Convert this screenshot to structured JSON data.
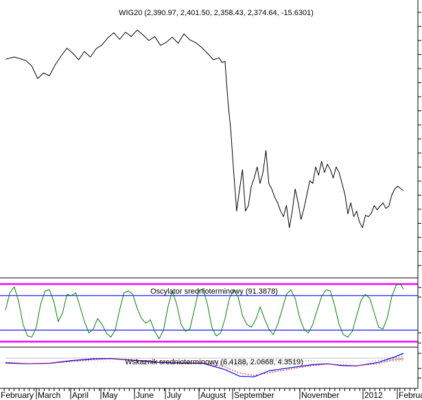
{
  "chart_data": [
    {
      "type": "line",
      "title": "WIG20 (2,390.97, 2,401.50, 2,358.43, 2,374.64, -15.6301)",
      "xlabel": "",
      "ylabel": "",
      "x_tick_labels": [
        "February",
        "March",
        "April",
        "May",
        "June",
        "July",
        "August",
        "September",
        "November",
        "2012",
        "February"
      ],
      "series": [
        {
          "color": "#000000",
          "values": [
            [
              0,
              2850
            ],
            [
              6,
              2858
            ],
            [
              10,
              2852
            ],
            [
              14,
              2845
            ],
            [
              18,
              2825
            ],
            [
              22,
              2780
            ],
            [
              26,
              2800
            ],
            [
              30,
              2790
            ],
            [
              34,
              2830
            ],
            [
              38,
              2862
            ],
            [
              42,
              2890
            ],
            [
              46,
              2872
            ],
            [
              50,
              2848
            ],
            [
              54,
              2878
            ],
            [
              58,
              2858
            ],
            [
              62,
              2888
            ],
            [
              66,
              2902
            ],
            [
              70,
              2928
            ],
            [
              74,
              2946
            ],
            [
              78,
              2922
            ],
            [
              82,
              2948
            ],
            [
              86,
              2932
            ],
            [
              90,
              2956
            ],
            [
              94,
              2938
            ],
            [
              98,
              2918
            ],
            [
              102,
              2932
            ],
            [
              106,
              2900
            ],
            [
              110,
              2912
            ],
            [
              114,
              2930
            ],
            [
              118,
              2908
            ],
            [
              122,
              2942
            ],
            [
              126,
              2920
            ],
            [
              130,
              2910
            ],
            [
              134,
              2893
            ],
            [
              138,
              2872
            ],
            [
              142,
              2848
            ],
            [
              146,
              2855
            ],
            [
              148,
              2838
            ],
            [
              150,
              2842
            ],
            [
              152,
              2700
            ],
            [
              154,
              2590
            ],
            [
              156,
              2440
            ],
            [
              158,
              2300
            ],
            [
              160,
              2380
            ],
            [
              162,
              2450
            ],
            [
              164,
              2300
            ],
            [
              166,
              2320
            ],
            [
              168,
              2390
            ],
            [
              170,
              2420
            ],
            [
              172,
              2460
            ],
            [
              174,
              2400
            ],
            [
              176,
              2440
            ],
            [
              178,
              2520
            ],
            [
              180,
              2400
            ],
            [
              182,
              2380
            ],
            [
              184,
              2350
            ],
            [
              186,
              2330
            ],
            [
              188,
              2300
            ],
            [
              190,
              2280
            ],
            [
              192,
              2320
            ],
            [
              194,
              2240
            ],
            [
              196,
              2300
            ],
            [
              198,
              2380
            ],
            [
              200,
              2330
            ],
            [
              202,
              2270
            ],
            [
              204,
              2310
            ],
            [
              206,
              2360
            ],
            [
              208,
              2410
            ],
            [
              210,
              2400
            ],
            [
              212,
              2460
            ],
            [
              214,
              2430
            ],
            [
              216,
              2480
            ],
            [
              218,
              2440
            ],
            [
              220,
              2470
            ],
            [
              222,
              2450
            ],
            [
              224,
              2420
            ],
            [
              226,
              2460
            ],
            [
              228,
              2440
            ],
            [
              230,
              2400
            ],
            [
              232,
              2360
            ],
            [
              234,
              2290
            ],
            [
              236,
              2330
            ],
            [
              238,
              2280
            ],
            [
              240,
              2300
            ],
            [
              242,
              2260
            ],
            [
              244,
              2240
            ],
            [
              246,
              2285
            ],
            [
              248,
              2280
            ],
            [
              250,
              2292
            ],
            [
              252,
              2320
            ],
            [
              254,
              2305
            ],
            [
              256,
              2318
            ],
            [
              258,
              2330
            ],
            [
              260,
              2310
            ],
            [
              262,
              2318
            ],
            [
              264,
              2358
            ],
            [
              266,
              2380
            ],
            [
              268,
              2390
            ],
            [
              272,
              2374
            ]
          ]
        }
      ]
    },
    {
      "type": "line",
      "title": "Oscylator srednioterminowy (91.3878)",
      "xlabel": "",
      "ylabel": "",
      "reference_lines": [
        100,
        80,
        20,
        0
      ],
      "reference_colors": [
        "#ff00ff",
        "#0000ff",
        "#0000ff",
        "#ff00ff"
      ],
      "ylim": [
        -6,
        106
      ],
      "series": [
        {
          "color": "#008000",
          "values": [
            [
              0,
              55
            ],
            [
              3,
              85
            ],
            [
              6,
              95
            ],
            [
              9,
              70
            ],
            [
              12,
              30
            ],
            [
              15,
              10
            ],
            [
              18,
              8
            ],
            [
              21,
              25
            ],
            [
              24,
              65
            ],
            [
              27,
              88
            ],
            [
              30,
              90
            ],
            [
              33,
              70
            ],
            [
              36,
              35
            ],
            [
              39,
              50
            ],
            [
              42,
              82
            ],
            [
              45,
              80
            ],
            [
              48,
              85
            ],
            [
              51,
              60
            ],
            [
              54,
              35
            ],
            [
              57,
              15
            ],
            [
              60,
              22
            ],
            [
              63,
              40
            ],
            [
              66,
              30
            ],
            [
              69,
              15
            ],
            [
              72,
              8
            ],
            [
              75,
              20
            ],
            [
              78,
              55
            ],
            [
              81,
              85
            ],
            [
              84,
              88
            ],
            [
              87,
              82
            ],
            [
              90,
              58
            ],
            [
              93,
              40
            ],
            [
              96,
              32
            ],
            [
              99,
              38
            ],
            [
              102,
              18
            ],
            [
              105,
              5
            ],
            [
              108,
              20
            ],
            [
              111,
              60
            ],
            [
              114,
              88
            ],
            [
              117,
              65
            ],
            [
              120,
              30
            ],
            [
              123,
              18
            ],
            [
              126,
              22
            ],
            [
              129,
              55
            ],
            [
              132,
              88
            ],
            [
              135,
              92
            ],
            [
              138,
              65
            ],
            [
              141,
              25
            ],
            [
              144,
              10
            ],
            [
              147,
              15
            ],
            [
              150,
              40
            ],
            [
              153,
              75
            ],
            [
              156,
              90
            ],
            [
              159,
              78
            ],
            [
              162,
              45
            ],
            [
              165,
              30
            ],
            [
              168,
              25
            ],
            [
              171,
              38
            ],
            [
              174,
              60
            ],
            [
              177,
              40
            ],
            [
              180,
              22
            ],
            [
              183,
              12
            ],
            [
              186,
              30
            ],
            [
              189,
              55
            ],
            [
              192,
              82
            ],
            [
              195,
              90
            ],
            [
              198,
              75
            ],
            [
              201,
              42
            ],
            [
              204,
              22
            ],
            [
              207,
              15
            ],
            [
              210,
              30
            ],
            [
              213,
              55
            ],
            [
              216,
              78
            ],
            [
              219,
              90
            ],
            [
              222,
              88
            ],
            [
              225,
              62
            ],
            [
              228,
              30
            ],
            [
              231,
              12
            ],
            [
              234,
              8
            ],
            [
              237,
              18
            ],
            [
              240,
              45
            ],
            [
              243,
              72
            ],
            [
              246,
              82
            ],
            [
              249,
              75
            ],
            [
              252,
              50
            ],
            [
              255,
              25
            ],
            [
              258,
              22
            ],
            [
              261,
              42
            ],
            [
              264,
              78
            ],
            [
              267,
              98
            ],
            [
              270,
              100
            ],
            [
              272,
              91
            ]
          ]
        }
      ]
    },
    {
      "type": "line",
      "title": "Wskaznik srednioterminowy (6.4188, 2.0668, 4.3519)",
      "xlabel": "",
      "ylabel": "",
      "ylim": [
        -14,
        10
      ],
      "series": [
        {
          "color": "#0000ff",
          "values": [
            [
              0,
              -1
            ],
            [
              15,
              -1.6
            ],
            [
              30,
              -1.2
            ],
            [
              45,
              0.8
            ],
            [
              60,
              2.2
            ],
            [
              72,
              2.4
            ],
            [
              90,
              0.8
            ],
            [
              105,
              -0.6
            ],
            [
              120,
              -1
            ],
            [
              135,
              -1.2
            ],
            [
              150,
              -6
            ],
            [
              160,
              -11
            ],
            [
              170,
              -11.5
            ],
            [
              180,
              -7
            ],
            [
              195,
              -4.5
            ],
            [
              210,
              -2.2
            ],
            [
              220,
              -1.6
            ],
            [
              230,
              -3
            ],
            [
              240,
              -3.2
            ],
            [
              255,
              -0.5
            ],
            [
              265,
              3.2
            ],
            [
              272,
              6.4
            ]
          ]
        },
        {
          "color": "#ff0000",
          "values": [
            [
              0,
              -0.5
            ],
            [
              15,
              -1.5
            ],
            [
              30,
              -1.3
            ],
            [
              45,
              0.2
            ],
            [
              60,
              1.6
            ],
            [
              72,
              2.2
            ],
            [
              90,
              1.2
            ],
            [
              105,
              -0.1
            ],
            [
              120,
              -0.8
            ],
            [
              135,
              -1
            ],
            [
              150,
              -4
            ],
            [
              160,
              -8.5
            ],
            [
              170,
              -10.5
            ],
            [
              180,
              -8.5
            ],
            [
              195,
              -5.5
            ],
            [
              210,
              -3
            ],
            [
              220,
              -1.8
            ],
            [
              230,
              -2.4
            ],
            [
              240,
              -3
            ],
            [
              255,
              -1.5
            ],
            [
              265,
              1.5
            ],
            [
              272,
              2.1
            ]
          ]
        }
      ]
    }
  ]
}
